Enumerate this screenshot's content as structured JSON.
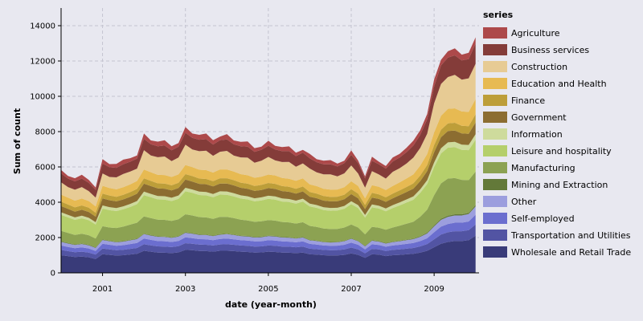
{
  "chart_data": {
    "type": "area",
    "stacked": true,
    "title": "",
    "xlabel": "date (year-month)",
    "ylabel": "Sum of count",
    "xlim": [
      "2000-01",
      "2010-02"
    ],
    "ylim": [
      0,
      15000
    ],
    "y_ticks": [
      0,
      2000,
      4000,
      6000,
      8000,
      10000,
      12000,
      14000
    ],
    "x_ticks": [
      "2001",
      "2003",
      "2005",
      "2007",
      "2009"
    ],
    "grid": true,
    "legend": {
      "title": "series",
      "position": "right"
    },
    "x": [
      "2000-01",
      "2000-03",
      "2000-05",
      "2000-07",
      "2000-09",
      "2000-11",
      "2001-01",
      "2001-03",
      "2001-05",
      "2001-07",
      "2001-09",
      "2001-11",
      "2002-01",
      "2002-03",
      "2002-05",
      "2002-07",
      "2002-09",
      "2002-11",
      "2003-01",
      "2003-03",
      "2003-05",
      "2003-07",
      "2003-09",
      "2003-11",
      "2004-01",
      "2004-03",
      "2004-05",
      "2004-07",
      "2004-09",
      "2004-11",
      "2005-01",
      "2005-03",
      "2005-05",
      "2005-07",
      "2005-09",
      "2005-11",
      "2006-01",
      "2006-03",
      "2006-05",
      "2006-07",
      "2006-09",
      "2006-11",
      "2007-01",
      "2007-03",
      "2007-05",
      "2007-07",
      "2007-09",
      "2007-11",
      "2008-01",
      "2008-03",
      "2008-05",
      "2008-07",
      "2008-09",
      "2008-11",
      "2009-01",
      "2009-03",
      "2009-05",
      "2009-07",
      "2009-09",
      "2009-11",
      "2010-01"
    ],
    "series": [
      {
        "name": "Wholesale and Retail Trade",
        "color": "#393b79",
        "values": [
          1000,
          950,
          900,
          920,
          880,
          780,
          1060,
          1020,
          980,
          1000,
          1040,
          1080,
          1250,
          1200,
          1150,
          1140,
          1120,
          1160,
          1300,
          1280,
          1240,
          1230,
          1200,
          1250,
          1250,
          1230,
          1200,
          1180,
          1150,
          1160,
          1200,
          1180,
          1150,
          1140,
          1120,
          1150,
          1050,
          1030,
          1000,
          980,
          990,
          1020,
          1100,
          1020,
          850,
          1050,
          1030,
          950,
          1000,
          1020,
          1050,
          1080,
          1150,
          1250,
          1450,
          1650,
          1750,
          1800,
          1800,
          1850,
          2100
        ]
      },
      {
        "name": "Transportation and Utilities",
        "color": "#5254a3",
        "values": [
          300,
          280,
          270,
          280,
          270,
          250,
          320,
          310,
          300,
          310,
          320,
          330,
          370,
          360,
          350,
          350,
          340,
          350,
          380,
          370,
          360,
          360,
          350,
          360,
          370,
          360,
          350,
          350,
          340,
          340,
          350,
          350,
          340,
          340,
          330,
          340,
          320,
          310,
          300,
          300,
          300,
          310,
          330,
          310,
          260,
          310,
          300,
          290,
          300,
          310,
          320,
          330,
          350,
          380,
          450,
          520,
          550,
          560,
          560,
          570,
          640
        ]
      },
      {
        "name": "Self-employed",
        "color": "#6b6ecf",
        "values": [
          250,
          240,
          230,
          240,
          230,
          210,
          270,
          260,
          250,
          260,
          270,
          280,
          320,
          310,
          300,
          300,
          290,
          300,
          330,
          320,
          310,
          310,
          300,
          310,
          320,
          310,
          300,
          300,
          290,
          290,
          300,
          300,
          290,
          290,
          280,
          290,
          270,
          260,
          250,
          250,
          250,
          260,
          280,
          260,
          220,
          260,
          250,
          240,
          250,
          260,
          270,
          280,
          300,
          330,
          400,
          450,
          470,
          480,
          480,
          490,
          550
        ]
      },
      {
        "name": "Other",
        "color": "#9c9ede",
        "values": [
          200,
          190,
          180,
          190,
          180,
          170,
          210,
          200,
          200,
          200,
          210,
          220,
          250,
          240,
          240,
          240,
          230,
          240,
          260,
          250,
          240,
          240,
          230,
          240,
          250,
          240,
          230,
          230,
          220,
          230,
          230,
          230,
          220,
          220,
          210,
          220,
          200,
          200,
          190,
          190,
          190,
          200,
          220,
          200,
          170,
          200,
          190,
          180,
          190,
          200,
          210,
          220,
          240,
          270,
          330,
          380,
          400,
          410,
          410,
          420,
          470
        ]
      },
      {
        "name": "Mining and Extraction",
        "color": "#637939",
        "values": [
          30,
          30,
          30,
          30,
          30,
          30,
          30,
          30,
          30,
          30,
          30,
          30,
          30,
          30,
          30,
          30,
          30,
          30,
          30,
          30,
          30,
          30,
          30,
          30,
          30,
          30,
          30,
          30,
          30,
          30,
          30,
          30,
          30,
          30,
          30,
          30,
          30,
          30,
          30,
          30,
          30,
          30,
          30,
          30,
          30,
          30,
          30,
          30,
          30,
          30,
          30,
          30,
          40,
          50,
          60,
          70,
          70,
          70,
          70,
          70,
          80
        ]
      },
      {
        "name": "Manufacturing",
        "color": "#8ca252",
        "values": [
          600,
          570,
          540,
          560,
          540,
          500,
          750,
          750,
          780,
          820,
          860,
          900,
          980,
          960,
          940,
          940,
          930,
          950,
          1020,
          1000,
          980,
          970,
          950,
          980,
          950,
          930,
          900,
          880,
          860,
          870,
          880,
          870,
          850,
          840,
          820,
          840,
          790,
          770,
          740,
          730,
          730,
          750,
          780,
          750,
          650,
          760,
          760,
          750,
          800,
          850,
          900,
          950,
          1100,
          1300,
          1700,
          2000,
          2100,
          2050,
          1950,
          1850,
          1900
        ]
      },
      {
        "name": "Leisure and hospitality",
        "color": "#b5cf6b",
        "values": [
          900,
          880,
          850,
          870,
          850,
          800,
          1000,
          980,
          960,
          980,
          1000,
          1050,
          1200,
          1180,
          1150,
          1150,
          1130,
          1160,
          1300,
          1280,
          1250,
          1250,
          1220,
          1260,
          1250,
          1230,
          1200,
          1190,
          1160,
          1180,
          1200,
          1190,
          1160,
          1150,
          1130,
          1160,
          1100,
          1080,
          1050,
          1040,
          1040,
          1060,
          1150,
          1100,
          950,
          1100,
          1080,
          1050,
          1100,
          1150,
          1200,
          1250,
          1350,
          1450,
          1600,
          1700,
          1750,
          1750,
          1700,
          1700,
          1800
        ]
      },
      {
        "name": "Information",
        "color": "#cedb9c",
        "values": [
          150,
          145,
          140,
          145,
          140,
          130,
          180,
          175,
          170,
          170,
          175,
          180,
          200,
          195,
          190,
          190,
          185,
          190,
          200,
          195,
          190,
          190,
          185,
          190,
          190,
          185,
          180,
          178,
          175,
          176,
          180,
          178,
          175,
          173,
          170,
          172,
          165,
          162,
          158,
          157,
          157,
          160,
          170,
          165,
          145,
          165,
          162,
          158,
          165,
          172,
          180,
          188,
          200,
          220,
          260,
          290,
          300,
          300,
          295,
          295,
          310
        ]
      },
      {
        "name": "Government",
        "color": "#8c6d31",
        "values": [
          350,
          340,
          330,
          340,
          330,
          310,
          400,
          390,
          380,
          390,
          400,
          410,
          450,
          440,
          430,
          430,
          420,
          430,
          460,
          450,
          440,
          440,
          430,
          440,
          450,
          440,
          430,
          425,
          415,
          420,
          430,
          425,
          415,
          410,
          400,
          410,
          390,
          385,
          375,
          372,
          372,
          380,
          400,
          390,
          340,
          390,
          385,
          375,
          390,
          405,
          420,
          440,
          470,
          510,
          580,
          620,
          640,
          640,
          630,
          630,
          670
        ]
      },
      {
        "name": "Finance",
        "color": "#bd9e39",
        "values": [
          250,
          245,
          240,
          245,
          240,
          225,
          270,
          265,
          260,
          265,
          270,
          275,
          300,
          295,
          290,
          290,
          285,
          290,
          310,
          305,
          300,
          300,
          295,
          300,
          300,
          295,
          290,
          288,
          283,
          285,
          290,
          288,
          283,
          280,
          275,
          278,
          265,
          260,
          255,
          253,
          253,
          258,
          275,
          265,
          230,
          265,
          260,
          255,
          265,
          275,
          285,
          300,
          320,
          350,
          400,
          430,
          440,
          440,
          435,
          435,
          460
        ]
      },
      {
        "name": "Education and Health",
        "color": "#e7ba52",
        "values": [
          400,
          390,
          380,
          390,
          380,
          360,
          440,
          430,
          420,
          430,
          440,
          450,
          500,
          490,
          480,
          480,
          470,
          480,
          520,
          510,
          500,
          500,
          490,
          500,
          500,
          490,
          480,
          475,
          465,
          470,
          480,
          475,
          465,
          460,
          450,
          460,
          430,
          425,
          415,
          412,
          412,
          420,
          450,
          435,
          380,
          435,
          425,
          415,
          435,
          455,
          480,
          510,
          560,
          620,
          720,
          790,
          820,
          820,
          810,
          810,
          860
        ]
      },
      {
        "name": "Construction",
        "color": "#e7cb94",
        "values": [
          700,
          600,
          620,
          650,
          560,
          500,
          700,
          620,
          680,
          750,
          720,
          700,
          1100,
          950,
          1000,
          1050,
          900,
          950,
          1150,
          1000,
          1050,
          1100,
          950,
          1000,
          1050,
          900,
          950,
          1000,
          850,
          900,
          1000,
          850,
          900,
          950,
          800,
          850,
          900,
          780,
          820,
          870,
          740,
          790,
          900,
          700,
          600,
          800,
          700,
          650,
          800,
          800,
          850,
          950,
          1000,
          1150,
          1650,
          1800,
          1800,
          1900,
          1800,
          1900,
          2000
        ]
      },
      {
        "name": "Business services",
        "color": "#843c39",
        "values": [
          500,
          480,
          470,
          480,
          470,
          440,
          560,
          550,
          540,
          550,
          560,
          570,
          640,
          630,
          620,
          620,
          610,
          620,
          670,
          660,
          650,
          650,
          640,
          650,
          650,
          640,
          630,
          625,
          615,
          620,
          630,
          625,
          615,
          610,
          600,
          610,
          580,
          575,
          565,
          562,
          562,
          570,
          600,
          585,
          520,
          585,
          575,
          565,
          585,
          610,
          640,
          680,
          740,
          820,
          950,
          1050,
          1100,
          1100,
          1090,
          1090,
          1150
        ]
      },
      {
        "name": "Agriculture",
        "color": "#ad494a",
        "values": [
          200,
          150,
          180,
          220,
          170,
          130,
          250,
          180,
          220,
          260,
          200,
          170,
          300,
          220,
          260,
          300,
          230,
          200,
          330,
          240,
          280,
          320,
          240,
          210,
          300,
          220,
          250,
          290,
          210,
          180,
          280,
          200,
          230,
          270,
          190,
          160,
          250,
          170,
          200,
          240,
          160,
          140,
          250,
          150,
          120,
          230,
          150,
          140,
          220,
          200,
          250,
          280,
          260,
          300,
          400,
          320,
          360,
          400,
          330,
          360,
          350
        ]
      }
    ]
  }
}
